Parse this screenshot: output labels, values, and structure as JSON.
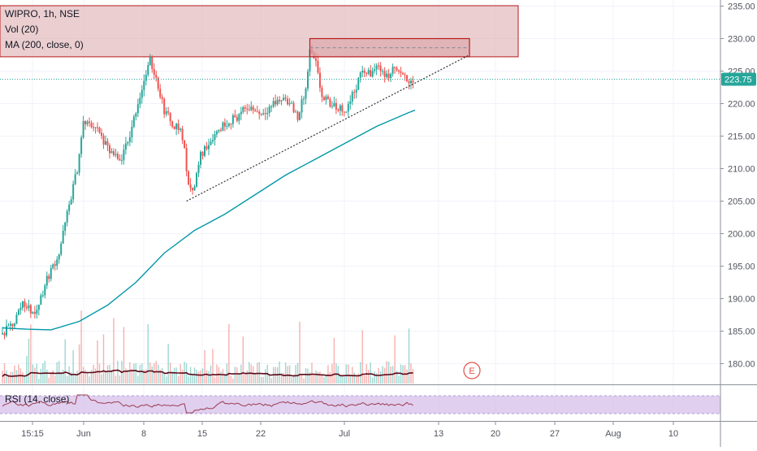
{
  "header": {
    "symbol": "WIPRO, 1h, NSE",
    "volume_label": "Vol (20)",
    "ma_label": "MA (200, close, 0)"
  },
  "rsi_label": "RSI (14, close)",
  "earnings_marker": "E",
  "colors": {
    "up": "#26a69a",
    "down": "#ef5350",
    "ma_line": "#0097a7",
    "vol_ma_line": "#5d0a1a",
    "rsi_line": "#9c3b52",
    "rsi_band": "#d6bfe8",
    "zone_fill": "#dba6aa",
    "zone_border": "#b71c1c",
    "price_line": "#26a69a",
    "trendline": "#333333"
  },
  "chart_data": {
    "type": "candlestick",
    "symbol": "WIPRO",
    "interval": "1h",
    "exchange": "NSE",
    "current_price": "223.75",
    "y_ticks": [
      "235.00",
      "230.00",
      "225.00",
      "220.00",
      "215.00",
      "210.00",
      "205.00",
      "200.00",
      "195.00",
      "190.00",
      "185.00",
      "180.00"
    ],
    "x_ticks": [
      "15:15",
      "Jun",
      "8",
      "15",
      "22",
      "Jul",
      "13",
      "20",
      "27",
      "Aug",
      "10"
    ],
    "ylim": [
      178,
      236
    ],
    "price_path": [
      {
        "i": 0,
        "p": 184.5
      },
      {
        "i": 6,
        "p": 186.5
      },
      {
        "i": 10,
        "p": 189.5
      },
      {
        "i": 16,
        "p": 187.5
      },
      {
        "i": 22,
        "p": 193
      },
      {
        "i": 28,
        "p": 197
      },
      {
        "i": 32,
        "p": 203
      },
      {
        "i": 37,
        "p": 210
      },
      {
        "i": 40,
        "p": 217
      },
      {
        "i": 46,
        "p": 216.5
      },
      {
        "i": 52,
        "p": 213
      },
      {
        "i": 58,
        "p": 211
      },
      {
        "i": 62,
        "p": 214
      },
      {
        "i": 66,
        "p": 219
      },
      {
        "i": 70,
        "p": 223.5
      },
      {
        "i": 73,
        "p": 226.5
      },
      {
        "i": 76,
        "p": 224
      },
      {
        "i": 80,
        "p": 219
      },
      {
        "i": 84,
        "p": 217
      },
      {
        "i": 88,
        "p": 216
      },
      {
        "i": 90,
        "p": 213
      },
      {
        "i": 92,
        "p": 207
      },
      {
        "i": 95,
        "p": 207.5
      },
      {
        "i": 98,
        "p": 212
      },
      {
        "i": 104,
        "p": 215
      },
      {
        "i": 110,
        "p": 217
      },
      {
        "i": 116,
        "p": 218
      },
      {
        "i": 122,
        "p": 219.5
      },
      {
        "i": 128,
        "p": 218.5
      },
      {
        "i": 134,
        "p": 220
      },
      {
        "i": 140,
        "p": 221
      },
      {
        "i": 146,
        "p": 218
      },
      {
        "i": 150,
        "p": 222
      },
      {
        "i": 152,
        "p": 228
      },
      {
        "i": 155,
        "p": 226
      },
      {
        "i": 158,
        "p": 221
      },
      {
        "i": 164,
        "p": 219.5
      },
      {
        "i": 170,
        "p": 219
      },
      {
        "i": 174,
        "p": 222
      },
      {
        "i": 178,
        "p": 225
      },
      {
        "i": 182,
        "p": 224.5
      },
      {
        "i": 186,
        "p": 226
      },
      {
        "i": 190,
        "p": 224
      },
      {
        "i": 194,
        "p": 225.5
      },
      {
        "i": 198,
        "p": 224
      },
      {
        "i": 202,
        "p": 223.5
      }
    ],
    "ma_200": [
      {
        "i": 0,
        "p": 185.5
      },
      {
        "i": 12,
        "p": 185.3
      },
      {
        "i": 24,
        "p": 185.2
      },
      {
        "i": 38,
        "p": 186.5
      },
      {
        "i": 52,
        "p": 189
      },
      {
        "i": 66,
        "p": 192.5
      },
      {
        "i": 80,
        "p": 197
      },
      {
        "i": 95,
        "p": 200.5
      },
      {
        "i": 110,
        "p": 203
      },
      {
        "i": 125,
        "p": 206
      },
      {
        "i": 140,
        "p": 209
      },
      {
        "i": 155,
        "p": 211.5
      },
      {
        "i": 170,
        "p": 214
      },
      {
        "i": 185,
        "p": 216.5
      },
      {
        "i": 200,
        "p": 218.5
      },
      {
        "i": 204,
        "p": 219
      }
    ],
    "resistance_zone": {
      "low": 227.2,
      "high": 230
    },
    "trendline": {
      "start": {
        "i": 91,
        "p": 205
      },
      "end": {
        "i": 231,
        "p": 227.5
      }
    },
    "annotations": [
      "resistance zone",
      "ascending trendline",
      "earnings marker E"
    ]
  }
}
